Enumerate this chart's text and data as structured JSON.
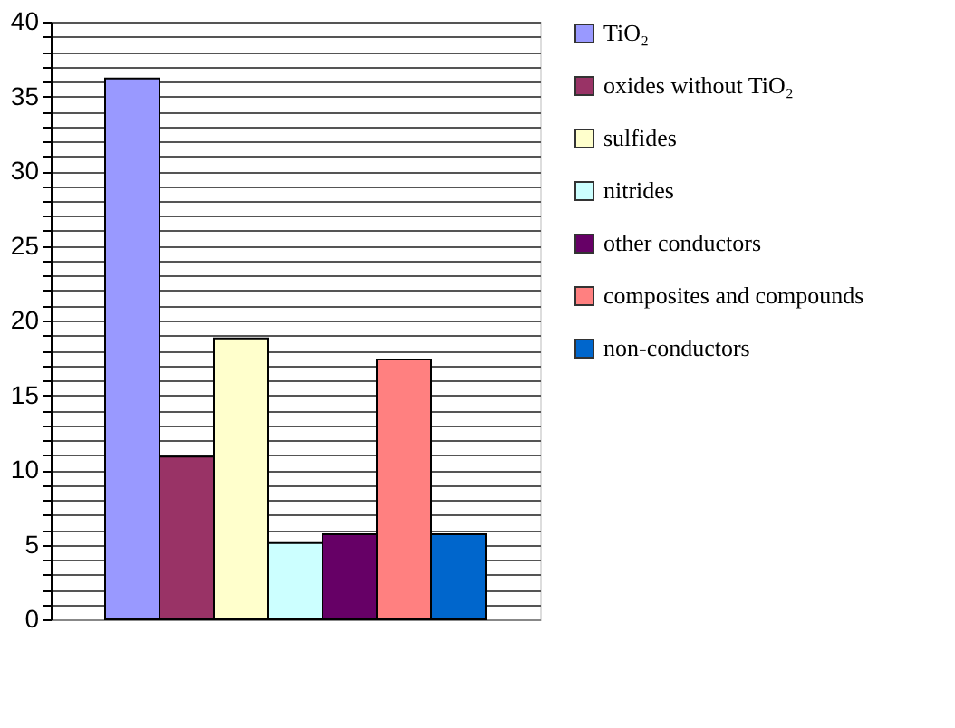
{
  "chart_data": {
    "type": "bar",
    "categories": [
      null
    ],
    "series": [
      {
        "name": "TiO₂",
        "color": "#9999ff",
        "values": [
          36.2
        ]
      },
      {
        "name": "oxides without TiO₂",
        "color": "#993366",
        "values": [
          10.9
        ]
      },
      {
        "name": "sulfides",
        "color": "#ffffcc",
        "values": [
          18.8
        ]
      },
      {
        "name": "nitrides",
        "color": "#ccffff",
        "values": [
          5.1
        ]
      },
      {
        "name": "other conductors",
        "color": "#660066",
        "values": [
          5.7
        ]
      },
      {
        "name": "composites and compounds",
        "color": "#ff8080",
        "values": [
          17.4
        ]
      },
      {
        "name": "non-conductors",
        "color": "#0066cc",
        "values": [
          5.7
        ]
      }
    ],
    "ylim": [
      0,
      40
    ],
    "yticks": [
      0,
      {
        "value": 1,
        "label": null
      },
      {
        "value": 2,
        "label": null
      },
      {
        "value": 3,
        "label": null
      },
      {
        "value": 4,
        "label": null
      },
      5,
      {
        "value": 6,
        "label": null
      },
      {
        "value": 7,
        "label": null
      },
      {
        "value": 8,
        "label": null
      },
      {
        "value": 9,
        "label": null
      },
      10,
      {
        "value": 11,
        "label": null
      },
      {
        "value": 12,
        "label": null
      },
      {
        "value": 13,
        "label": null
      },
      {
        "value": 14,
        "label": null
      },
      15,
      {
        "value": 16,
        "label": null
      },
      {
        "value": 17,
        "label": null
      },
      {
        "value": 18,
        "label": null
      },
      {
        "value": 19,
        "label": null
      },
      20,
      {
        "value": 21,
        "label": null
      },
      {
        "value": 22,
        "label": null
      },
      {
        "value": 23,
        "label": null
      },
      {
        "value": 24,
        "label": null
      },
      25,
      {
        "value": 26,
        "label": null
      },
      {
        "value": 27,
        "label": null
      },
      {
        "value": 28,
        "label": null
      },
      {
        "value": 29,
        "label": null
      },
      30,
      {
        "value": 31,
        "label": null
      },
      {
        "value": 32,
        "label": null
      },
      {
        "value": 33,
        "label": null
      },
      {
        "value": 34,
        "label": null
      },
      35,
      {
        "value": 36,
        "label": null
      },
      {
        "value": 37,
        "label": null
      },
      {
        "value": 38,
        "label": null
      },
      {
        "value": 39,
        "label": null
      },
      40
    ],
    "grid": true,
    "legend": "right",
    "tick_labels": "y"
  }
}
